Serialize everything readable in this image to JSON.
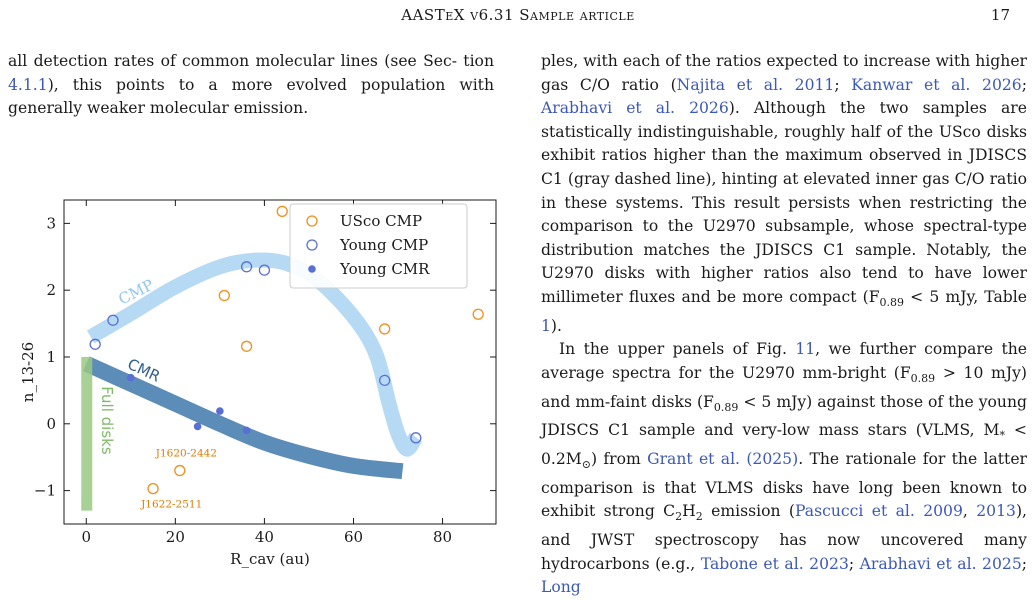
{
  "header": {
    "title": "AASTeX v6.31 Sample article",
    "page": "17"
  },
  "left_text": {
    "segments": [
      {
        "t": "all detection rates of common molecular lines (see Sec- tion "
      },
      {
        "t": "4.1.1",
        "link": true
      },
      {
        "t": "), this points to a more evolved population with generally weaker molecular emission."
      }
    ]
  },
  "right_text": {
    "para1": [
      {
        "t": "ples, with each of the ratios expected to increase with higher gas C/O ratio ("
      },
      {
        "t": "Najita et al. 2011",
        "link": true
      },
      {
        "t": "; "
      },
      {
        "t": "Kanwar et al. 2026",
        "link": true
      },
      {
        "t": "; "
      },
      {
        "t": "Arabhavi et al. 2026",
        "link": true
      },
      {
        "t": "). Although the two samples are statistically indistinguishable, roughly half of the USco disks exhibit ratios higher than the maximum observed in JDISCS C1 (gray dashed line), hinting at elevated inner gas C/O ratio in these systems. This result persists when restricting the comparison to the U2970 subsample, whose spectral-type distribution matches the JDISCS C1 sample. Notably, the U2970 disks with higher ratios also tend to have lower millimeter fluxes and be more compact (F"
      },
      {
        "t": "0.89",
        "sub": true
      },
      {
        "t": " < 5 mJy, Table "
      },
      {
        "t": "1",
        "link": true
      },
      {
        "t": ")."
      }
    ],
    "para2": [
      {
        "t": "In the upper panels of Fig. "
      },
      {
        "t": "11",
        "link": true
      },
      {
        "t": ", we further compare the average spectra for the U2970 mm-bright (F"
      },
      {
        "t": "0.89",
        "sub": true
      },
      {
        "t": " > 10 mJy) and mm-faint disks (F"
      },
      {
        "t": "0.89",
        "sub": true
      },
      {
        "t": " < 5 mJy) against those of the young JDISCS C1 sample and very-low mass stars (VLMS, M"
      },
      {
        "t": "*",
        "sub": true
      },
      {
        "t": " < 0.2M"
      },
      {
        "t": "⊙",
        "sub": true
      },
      {
        "t": ") from "
      },
      {
        "t": "Grant et al. (2025)",
        "link": true
      },
      {
        "t": ". The rationale for the latter comparison is that VLMS disks have long been known to exhibit strong C"
      },
      {
        "t": "2",
        "sub": true
      },
      {
        "t": "H"
      },
      {
        "t": "2",
        "sub": true
      },
      {
        "t": " emission ("
      },
      {
        "t": "Pascucci et al. 2009",
        "link": true
      },
      {
        "t": ", "
      },
      {
        "t": "2013",
        "link": true
      },
      {
        "t": "), and JWST spectroscopy has now uncovered many hydrocarbons (e.g., "
      },
      {
        "t": "Tabone et al. 2023",
        "link": true
      },
      {
        "t": "; "
      },
      {
        "t": "Arabhavi et al. 2025",
        "link": true
      },
      {
        "t": "; "
      },
      {
        "t": "Long",
        "link": true
      }
    ]
  },
  "chart_data": {
    "type": "scatter",
    "xlabel": "R_cav (au)",
    "ylabel": "n_13-26",
    "xlim": [
      -5,
      92
    ],
    "ylim": [
      -1.5,
      3.35
    ],
    "xticks": [
      "0",
      "20",
      "40",
      "60",
      "80"
    ],
    "yticks": [
      "−1",
      "0",
      "1",
      "2",
      "3"
    ],
    "legend_position": "top-right",
    "series": [
      {
        "name": "USco CMP",
        "marker": "open-circle",
        "color": "#f28e1c",
        "points": [
          [
            44,
            3.18
          ],
          [
            31,
            1.92
          ],
          [
            36,
            1.16
          ],
          [
            67,
            1.42
          ],
          [
            88,
            1.64
          ],
          [
            21,
            -0.7
          ],
          [
            15,
            -0.97
          ]
        ]
      },
      {
        "name": "Young CMP",
        "marker": "open-circle",
        "color": "#5a6fd6",
        "points": [
          [
            2,
            1.19
          ],
          [
            6,
            1.55
          ],
          [
            36,
            2.35
          ],
          [
            40,
            2.3
          ],
          [
            67,
            0.65
          ],
          [
            74,
            -0.21
          ]
        ]
      },
      {
        "name": "Young CMR",
        "marker": "filled-circle",
        "color": "#5a6fd6",
        "points": [
          [
            10,
            0.69
          ],
          [
            25,
            -0.04
          ],
          [
            30,
            0.19
          ],
          [
            36,
            -0.1
          ]
        ]
      }
    ],
    "bands": [
      {
        "label": "CMP",
        "color": "#a9d4f2",
        "path": [
          [
            1,
            1.3
          ],
          [
            10,
            1.65
          ],
          [
            20,
            2.05
          ],
          [
            30,
            2.35
          ],
          [
            38,
            2.45
          ],
          [
            45,
            2.4
          ],
          [
            52,
            2.15
          ],
          [
            60,
            1.6
          ],
          [
            65,
            1.05
          ],
          [
            68,
            0.3
          ],
          [
            70,
            -0.15
          ],
          [
            72,
            -0.38
          ],
          [
            74,
            -0.2
          ]
        ]
      },
      {
        "label": "CMR",
        "color": "#4a7fb0",
        "path": [
          [
            0,
            0.9
          ],
          [
            10,
            0.6
          ],
          [
            20,
            0.3
          ],
          [
            30,
            0.0
          ],
          [
            40,
            -0.28
          ],
          [
            50,
            -0.48
          ],
          [
            60,
            -0.63
          ],
          [
            71,
            -0.71
          ]
        ]
      },
      {
        "label": "Full disks",
        "color": "#98c983",
        "x": 0,
        "y_range": [
          -1.3,
          1.0
        ]
      }
    ],
    "annotations": [
      {
        "text": "J1620-2442",
        "color": "#e07b00",
        "x": 21,
        "y": -0.7
      },
      {
        "text": "J1622-2511",
        "color": "#e07b00",
        "x": 15,
        "y": -0.97
      }
    ]
  }
}
